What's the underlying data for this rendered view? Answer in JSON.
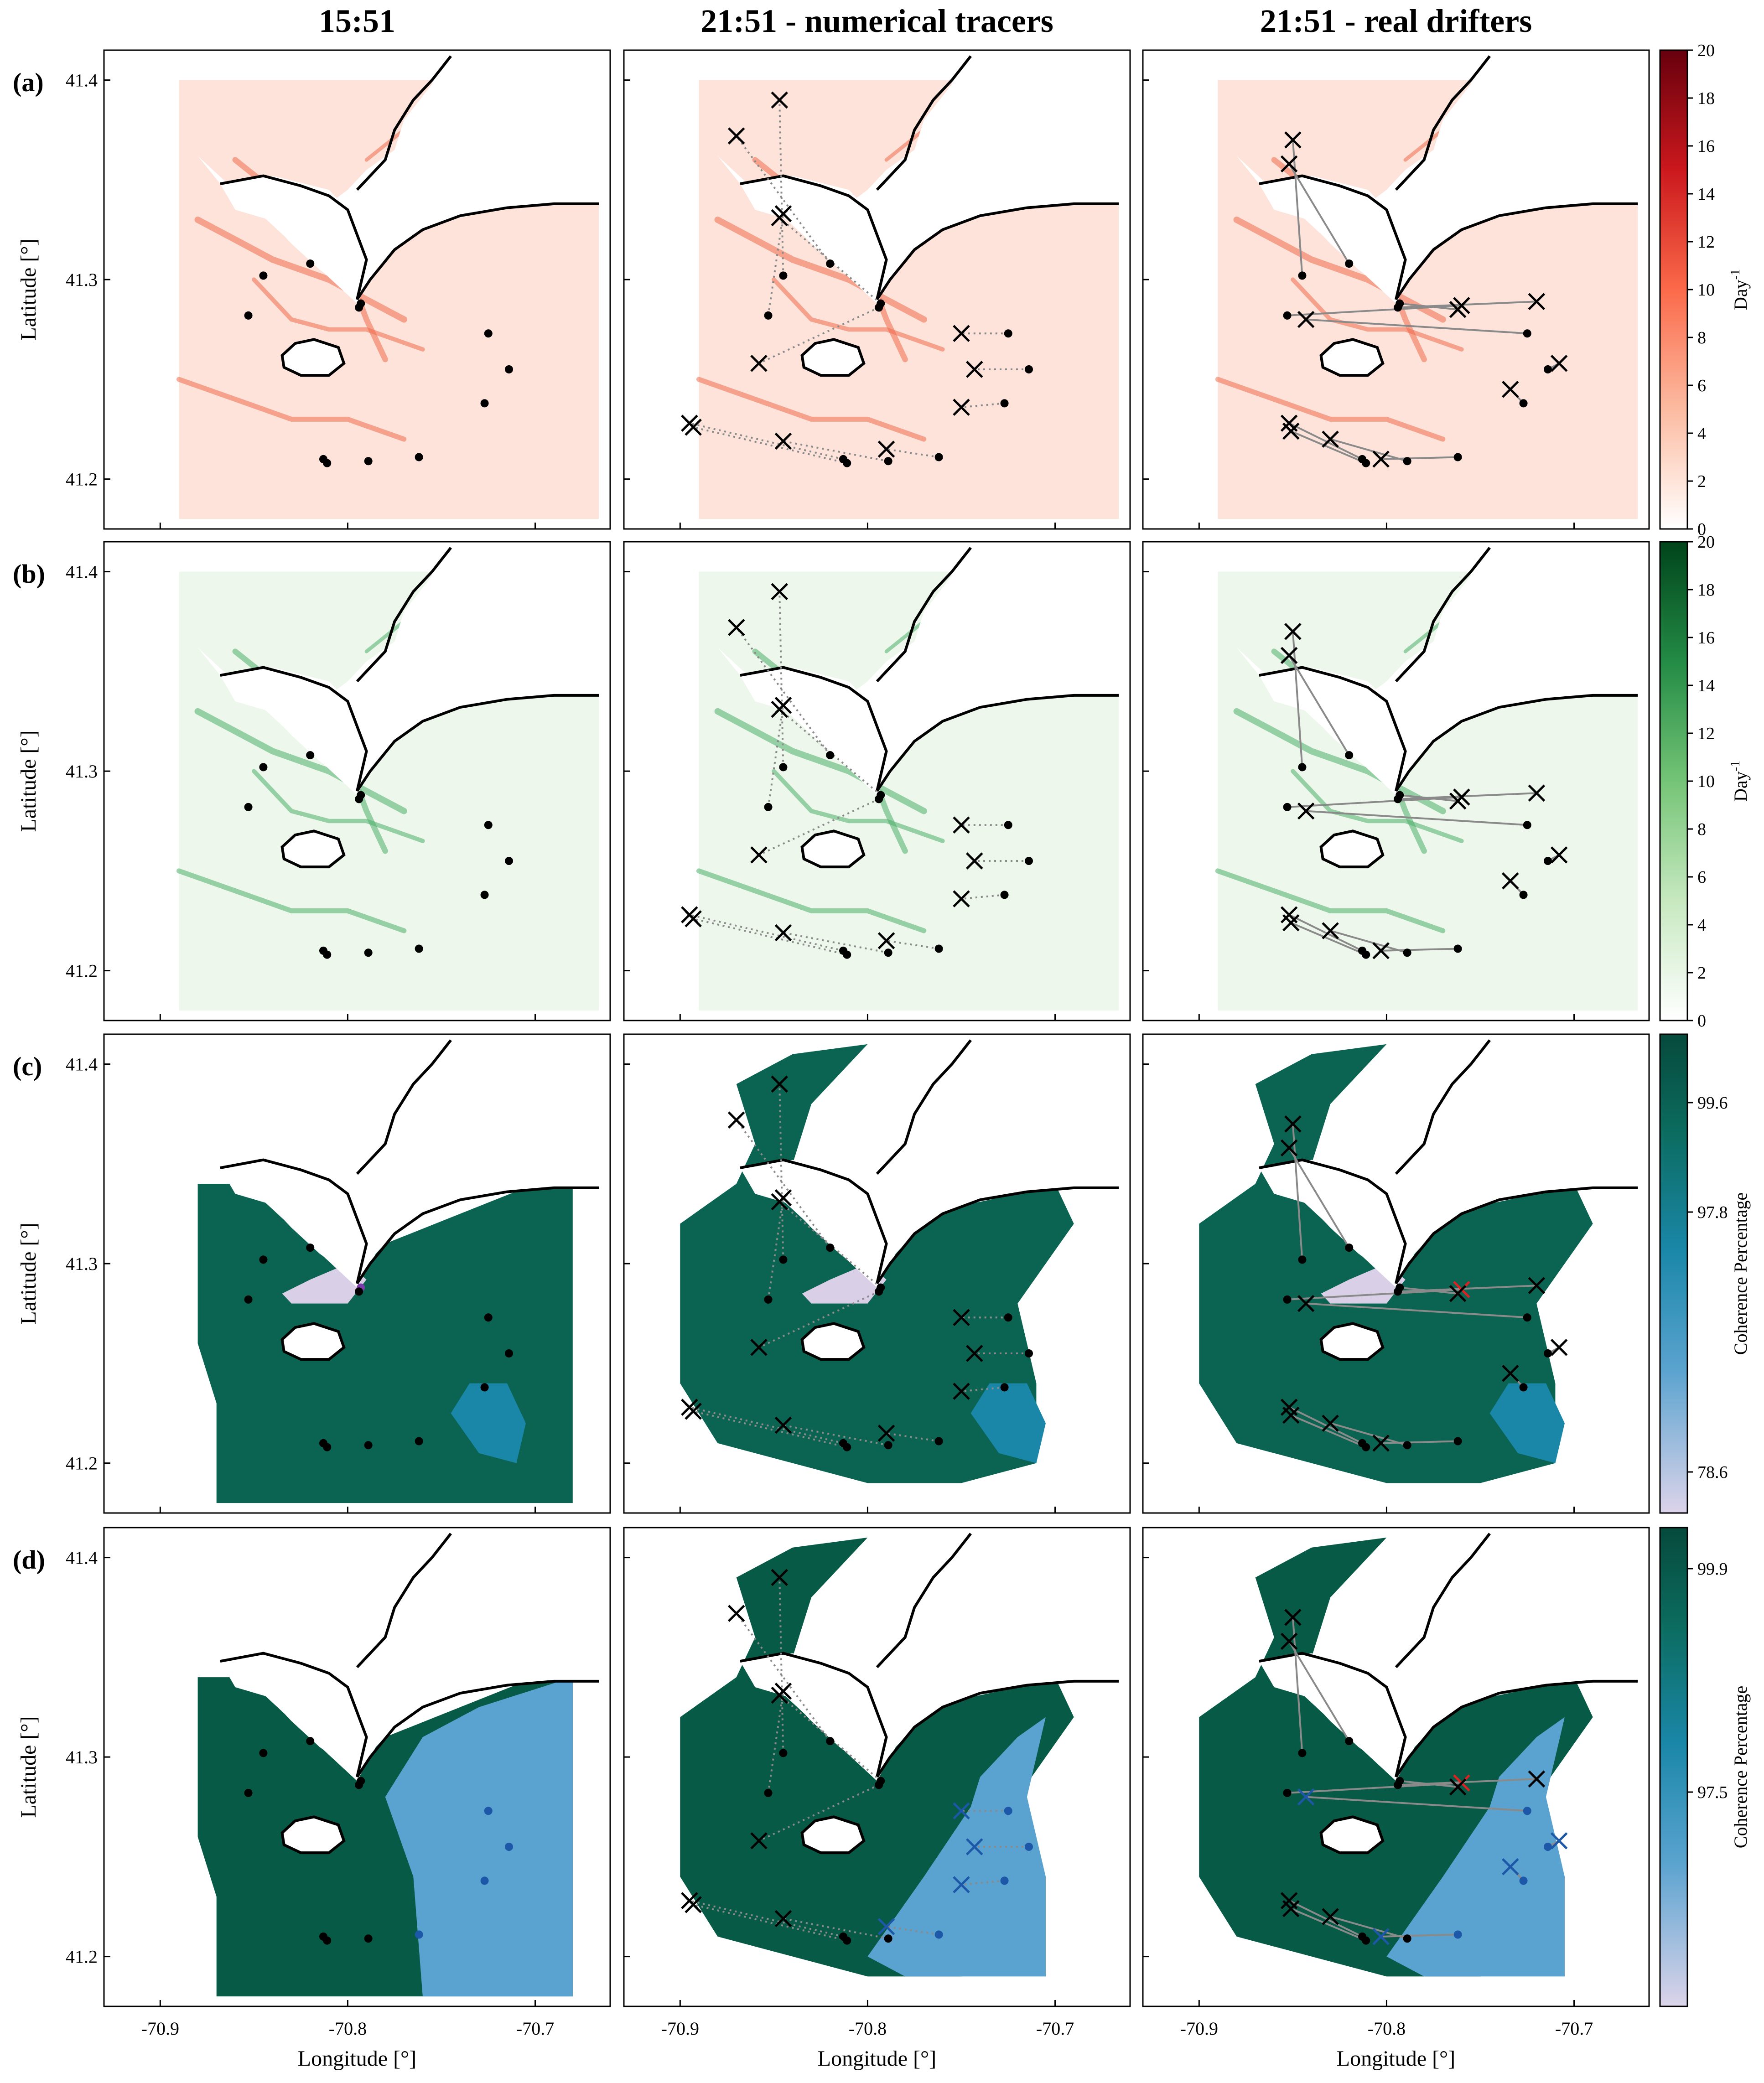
{
  "figure": {
    "column_titles": [
      "15:51",
      "21:51 - numerical tracers",
      "21:51 - real drifters"
    ],
    "row_labels": [
      "(a)",
      "(b)",
      "(c)",
      "(d)"
    ],
    "xlabel": "Longitude [ ]",
    "ylabel": "Latitude [ ]",
    "degree_symbol": "°",
    "x_ticks": [
      -70.9,
      -70.8,
      -70.7
    ],
    "x_tick_labels": [
      "-70.9",
      "-70.8",
      "-70.7"
    ],
    "y_ticks": [
      41.2,
      41.3,
      41.4
    ],
    "y_tick_labels": [
      "41.2",
      "41.3",
      "41.4"
    ],
    "xlim": [
      -70.93,
      -70.66
    ],
    "ylim": [
      41.175,
      41.415
    ]
  },
  "colorbars": {
    "a": {
      "label": "Day",
      "exponent": "-1",
      "ticks": [
        "0",
        "2",
        "4",
        "6",
        "8",
        "10",
        "12",
        "14",
        "16",
        "18",
        "20"
      ],
      "colors": [
        "#ffffff",
        "#fcbba1",
        "#fb6a4a",
        "#cb181d",
        "#67000d"
      ]
    },
    "b": {
      "label": "Day",
      "exponent": "-1",
      "ticks": [
        "0",
        "2",
        "4",
        "6",
        "8",
        "10",
        "12",
        "14",
        "16",
        "18",
        "20"
      ],
      "colors": [
        "#ffffff",
        "#c7e9c0",
        "#74c476",
        "#238b45",
        "#00441b"
      ]
    },
    "c": {
      "label": "Coherence Percentage",
      "ticks": [
        "99.6",
        "97.8",
        "78.6"
      ],
      "colors": [
        "#dcd4ea",
        "#5aa3cf",
        "#1a87a8",
        "#0b6b5e",
        "#064a3c"
      ]
    },
    "d": {
      "label": "Coherence Percentage",
      "ticks": [
        "99.9",
        "97.5"
      ],
      "colors": [
        "#dcd4ea",
        "#5aa3cf",
        "#1a87a8",
        "#0b6b5e",
        "#064a3c"
      ]
    }
  },
  "colors": {
    "red_field": "#ee6b4d",
    "green_field": "#4caf6a",
    "coherent_dark": "#0a6451",
    "coherent_blue": "#1a87a8",
    "coherent_light": "#5aa2cf",
    "lilac": "#d9d0e8",
    "purple_marker": "#7a3ea8",
    "blue_marker": "#1c57a8",
    "red_cross": "#e02020",
    "coast": "#000000",
    "track": "#8a8a8a"
  },
  "chart_data": {
    "type": "scatter",
    "drifter_start_positions": [
      {
        "x": -70.845,
        "y": 41.302
      },
      {
        "x": -70.82,
        "y": 41.308
      },
      {
        "x": -70.853,
        "y": 41.282
      },
      {
        "x": -70.793,
        "y": 41.288
      },
      {
        "x": -70.794,
        "y": 41.286
      },
      {
        "x": -70.725,
        "y": 41.273
      },
      {
        "x": -70.714,
        "y": 41.255
      },
      {
        "x": -70.727,
        "y": 41.238
      },
      {
        "x": -70.813,
        "y": 41.21
      },
      {
        "x": -70.811,
        "y": 41.208
      },
      {
        "x": -70.789,
        "y": 41.209
      },
      {
        "x": -70.762,
        "y": 41.211
      }
    ],
    "numerical_tracer_positions_2151": [
      {
        "x": -70.847,
        "y": 41.39
      },
      {
        "x": -70.87,
        "y": 41.372
      },
      {
        "x": -70.845,
        "y": 41.333
      },
      {
        "x": -70.847,
        "y": 41.331
      },
      {
        "x": -70.858,
        "y": 41.258
      },
      {
        "x": -70.75,
        "y": 41.273
      },
      {
        "x": -70.743,
        "y": 41.255
      },
      {
        "x": -70.75,
        "y": 41.236
      },
      {
        "x": -70.895,
        "y": 41.228
      },
      {
        "x": -70.893,
        "y": 41.226
      },
      {
        "x": -70.845,
        "y": 41.219
      },
      {
        "x": -70.79,
        "y": 41.215
      }
    ],
    "real_drifter_positions_2151": [
      {
        "x": -70.85,
        "y": 41.37
      },
      {
        "x": -70.852,
        "y": 41.358
      },
      {
        "x": -70.76,
        "y": 41.287
      },
      {
        "x": -70.762,
        "y": 41.285
      },
      {
        "x": -70.72,
        "y": 41.289
      },
      {
        "x": -70.843,
        "y": 41.28
      },
      {
        "x": -70.708,
        "y": 41.258
      },
      {
        "x": -70.734,
        "y": 41.245
      },
      {
        "x": -70.852,
        "y": 41.228
      },
      {
        "x": -70.851,
        "y": 41.224
      },
      {
        "x": -70.83,
        "y": 41.22
      },
      {
        "x": -70.803,
        "y": 41.21
      }
    ]
  }
}
